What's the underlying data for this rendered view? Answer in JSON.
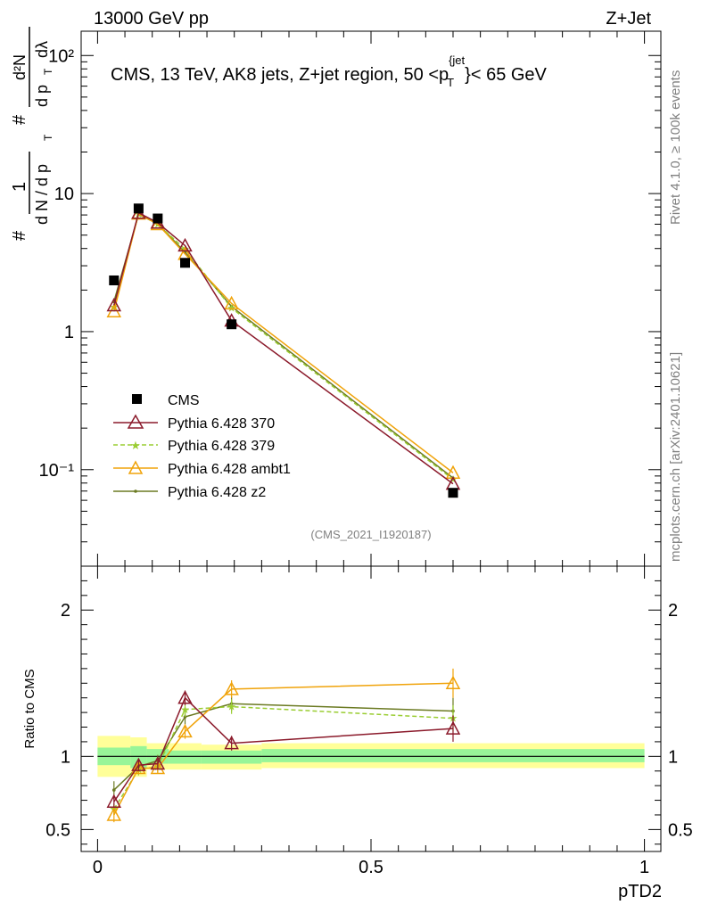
{
  "header": {
    "left": "13000 GeV pp",
    "right": "Z+Jet"
  },
  "side": {
    "rivet": "Rivet 4.1.0, ≥ 100k events",
    "mcplots": "mcplots.cern.ch [arXiv:2401.10621]"
  },
  "colors": {
    "cms": "#000000",
    "p370": "#8b1a2b",
    "p379": "#9acd32",
    "ambt1": "#f0a30a",
    "z2": "#6b7a22",
    "band_inner": "#98f598",
    "band_outer": "#ffff99"
  },
  "chart_data": [
    {
      "type": "line",
      "title": "CMS, 13 TeV, AK8 jets, Z+jet region, 50 <p_T^{jet}< 65 GeV",
      "title_parts": {
        "main": "CMS, 13 TeV, AK8 jets, Z+jet region, 50 <p",
        "sub": "T",
        "sup": "{jet",
        "tail": "}< 65 GeV"
      },
      "ylabel": "1/dN/dp_T dN/dp_T dλ",
      "ylabel_parts": {
        "hash": "#",
        "one": "1",
        "dn": "d N / d p",
        "t": "T",
        "hash2": "#",
        "d2n": "d²N",
        "dpdl": "d p",
        "lam": "dλ"
      },
      "yscale": "log",
      "ylim": [
        0.02,
        150
      ],
      "xlim": [
        -0.03,
        1.03
      ],
      "ytick_labels": [
        "10⁻¹",
        "1",
        "10",
        "10²"
      ],
      "ytick_values": [
        0.1,
        1,
        10,
        100
      ],
      "watermark": "(CMS_2021_I1920187)",
      "legend_position": "middle-left",
      "x": [
        0.03,
        0.075,
        0.11,
        0.16,
        0.245,
        0.65
      ],
      "series": [
        {
          "name": "CMS",
          "key": "cms",
          "marker": "square",
          "values": [
            2.35,
            7.8,
            6.6,
            3.15,
            1.13,
            0.068
          ]
        },
        {
          "name": "Pythia 6.428 370",
          "key": "p370",
          "marker": "open-triangle",
          "values": [
            1.55,
            7.25,
            6.15,
            4.2,
            1.2,
            0.079
          ]
        },
        {
          "name": "Pythia 6.428 379",
          "key": "p379",
          "marker": "star",
          "dashed": true,
          "values": [
            1.5,
            7.1,
            6.0,
            3.95,
            1.48,
            0.085
          ]
        },
        {
          "name": "Pythia 6.428 ambt1",
          "key": "ambt1",
          "marker": "open-triangle",
          "values": [
            1.4,
            7.15,
            6.0,
            3.65,
            1.6,
            0.095
          ]
        },
        {
          "name": "Pythia 6.428 z2",
          "key": "z2",
          "marker": "dot",
          "values": [
            1.65,
            7.05,
            6.05,
            3.75,
            1.52,
            0.087
          ]
        }
      ]
    },
    {
      "type": "line",
      "ylabel": "Ratio to CMS",
      "xlabel": "pTD2",
      "ylim": [
        0.35,
        2.3
      ],
      "xlim": [
        -0.03,
        1.03
      ],
      "xtick_values": [
        0,
        0.5,
        1
      ],
      "xtick_labels": [
        "0",
        "0.5",
        "1"
      ],
      "ytick_values": [
        0.5,
        1,
        2
      ],
      "ytick_labels": [
        "0.5",
        "1",
        "2"
      ],
      "band_edges": [
        0,
        0.06,
        0.09,
        0.13,
        0.19,
        0.3,
        1.0
      ],
      "band_inner": [
        [
          0.94,
          1.06
        ],
        [
          0.92,
          1.07
        ],
        [
          0.95,
          1.05
        ],
        [
          0.95,
          1.04
        ],
        [
          0.95,
          1.04
        ],
        [
          0.96,
          1.05
        ]
      ],
      "band_outer": [
        [
          0.86,
          1.14
        ],
        [
          0.86,
          1.13
        ],
        [
          0.91,
          1.09
        ],
        [
          0.91,
          1.09
        ],
        [
          0.91,
          1.08
        ],
        [
          0.92,
          1.09
        ]
      ],
      "x": [
        0.03,
        0.075,
        0.11,
        0.16,
        0.245,
        0.65
      ],
      "series": [
        {
          "name": "Pythia 6.428 370",
          "key": "p370",
          "marker": "open-triangle",
          "values": [
            0.69,
            0.94,
            0.95,
            1.4,
            1.09,
            1.19
          ],
          "err": [
            0.04,
            0.04,
            0.04,
            0.05,
            0.05,
            0.09
          ]
        },
        {
          "name": "Pythia 6.428 379",
          "key": "p379",
          "marker": "star",
          "dashed": true,
          "values": [
            0.64,
            0.91,
            0.93,
            1.32,
            1.34,
            1.26
          ],
          "err": [
            0.04,
            0.04,
            0.04,
            0.05,
            0.05,
            0.09
          ]
        },
        {
          "name": "Pythia 6.428 ambt1",
          "key": "ambt1",
          "marker": "open-triangle",
          "values": [
            0.6,
            0.92,
            0.92,
            1.17,
            1.46,
            1.5
          ],
          "err": [
            0.05,
            0.04,
            0.04,
            0.05,
            0.06,
            0.1
          ]
        },
        {
          "name": "Pythia 6.428 z2",
          "key": "z2",
          "marker": "dot",
          "values": [
            0.77,
            0.93,
            0.97,
            1.27,
            1.36,
            1.31
          ],
          "err": [
            0.06,
            0.04,
            0.04,
            0.05,
            0.05,
            0.09
          ]
        }
      ]
    }
  ]
}
